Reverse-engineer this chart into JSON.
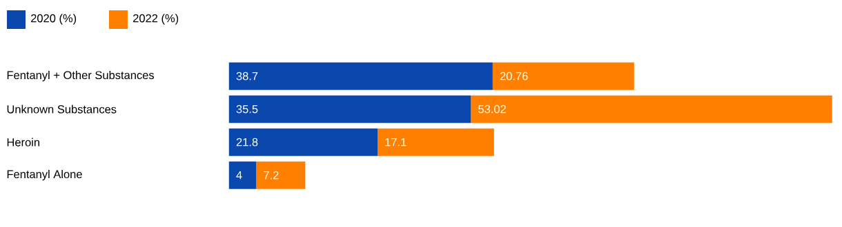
{
  "chart_data": {
    "type": "bar",
    "orientation": "horizontal",
    "stacked": true,
    "data_labels": true,
    "legend": "top left",
    "categories": [
      "Fentanyl + Other Substances",
      "Unknown Substances",
      "Heroin",
      "Fentanyl Alone"
    ],
    "series": [
      {
        "name": "2020 (%)",
        "color": "#0a48ae",
        "values": [
          38.7,
          35.5,
          21.8,
          4
        ]
      },
      {
        "name": "2022 (%)",
        "color": "#ff8000",
        "values": [
          20.76,
          53.02,
          17.1,
          7.2
        ]
      }
    ]
  }
}
